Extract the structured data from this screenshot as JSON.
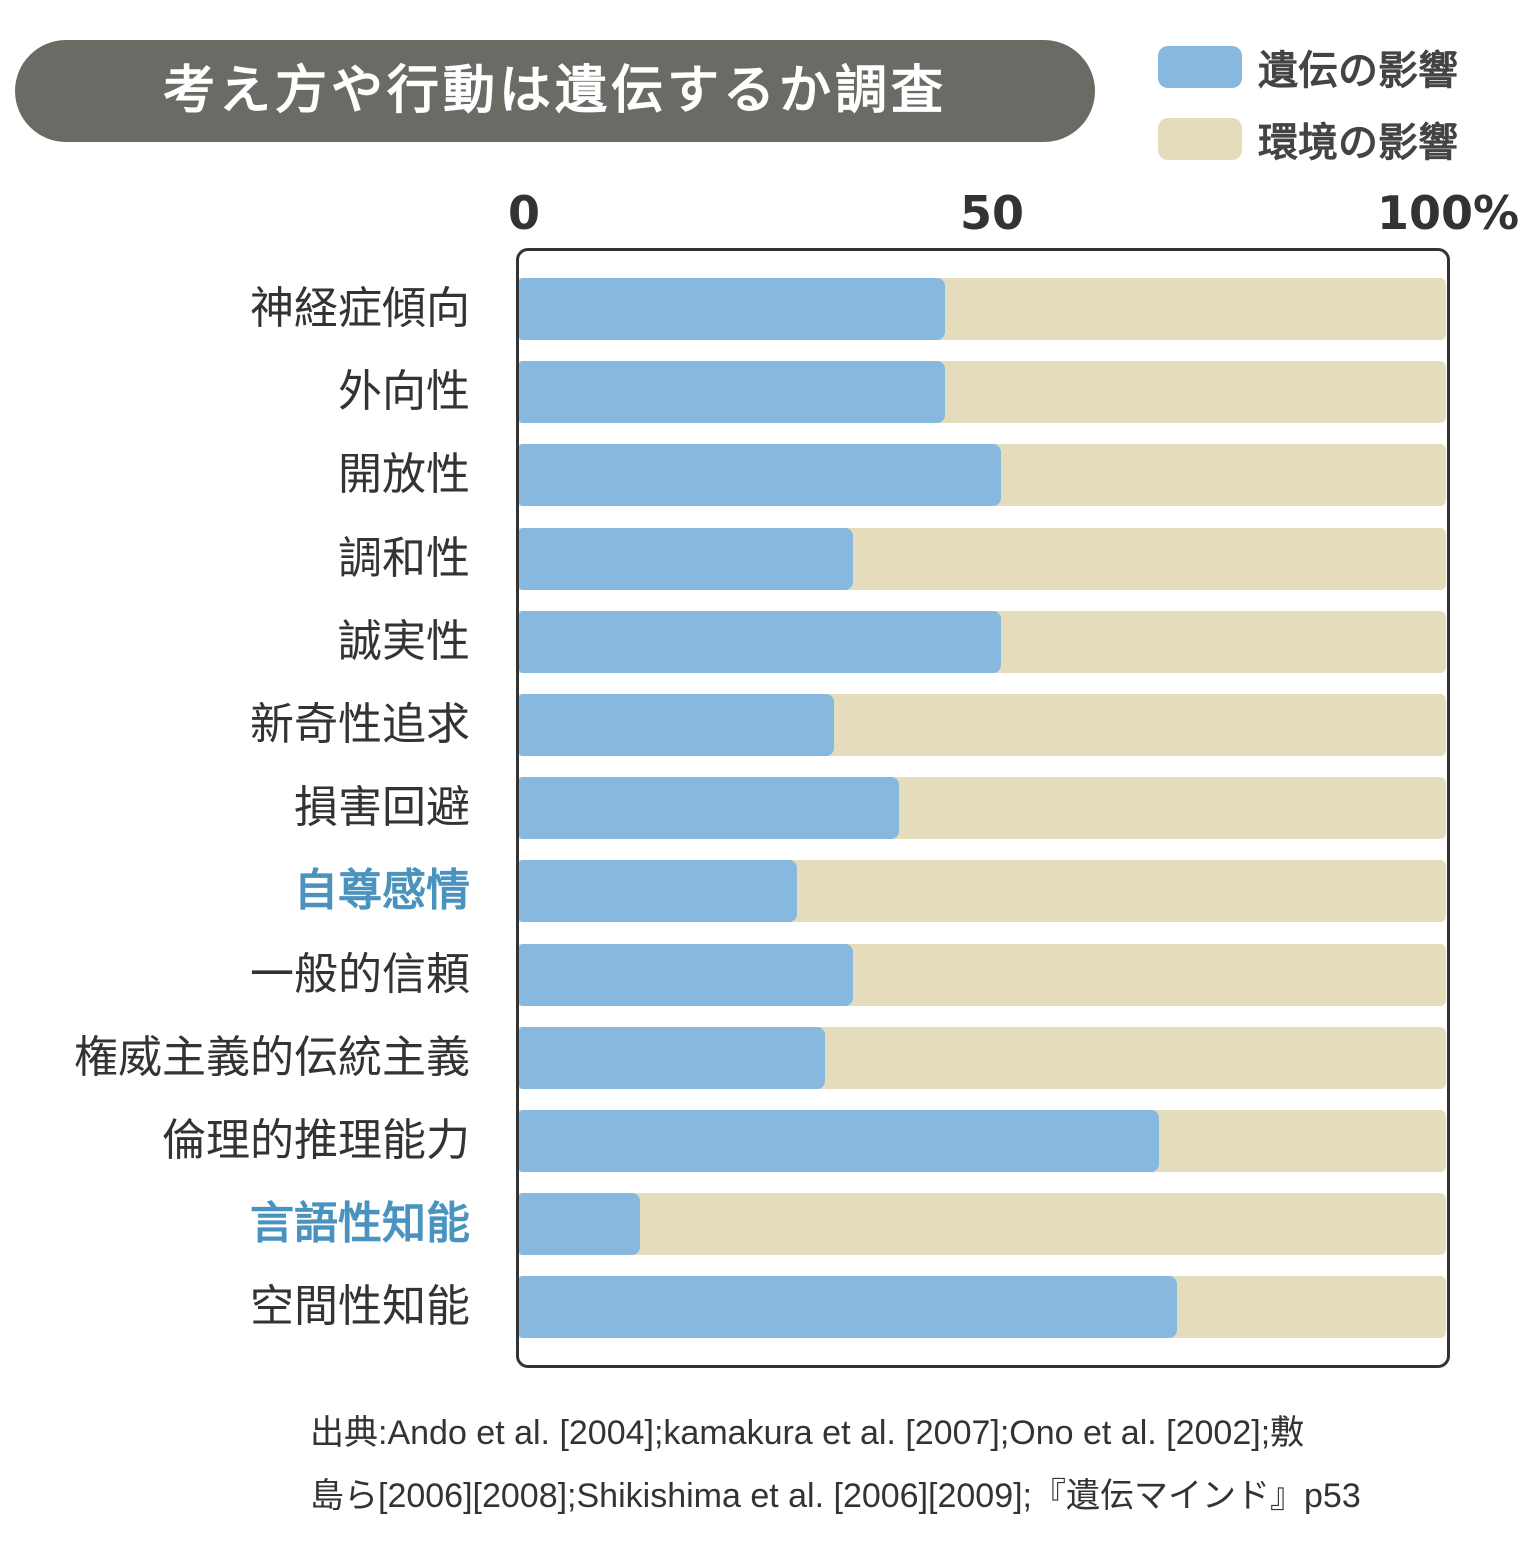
{
  "chart_data": {
    "type": "bar",
    "stacked": true,
    "orientation": "horizontal",
    "title": "考え方や行動は遺伝するか調査",
    "categories": [
      "神経症傾向",
      "外向性",
      "開放性",
      "調和性",
      "誠実性",
      "新奇性追求",
      "損害回避",
      "自尊感情",
      "一般的信頼",
      "権威主義的伝統主義",
      "倫理的推理能力",
      "言語性知能",
      "空間性知能"
    ],
    "highlighted": [
      "自尊感情",
      "言語性知能"
    ],
    "series": [
      {
        "name": "遺伝の影響",
        "color": "#86b8e0",
        "values": [
          46,
          46,
          52,
          36,
          52,
          34,
          41,
          30,
          36,
          33,
          69,
          13,
          71
        ]
      },
      {
        "name": "環境の影響",
        "color": "#e5dcbb",
        "values": [
          54,
          54,
          48,
          64,
          48,
          66,
          59,
          70,
          64,
          67,
          31,
          87,
          29
        ]
      }
    ],
    "xlim": [
      0,
      100
    ],
    "tick_labels": [
      "0",
      "50",
      "100%"
    ],
    "legend": "top-right",
    "highlight_color": "#4a93bf"
  },
  "source": {
    "line1": "出典:Ando et al. [2004];kamakura et al. [2007];Ono et al. [2002];敷",
    "line2": "島ら[2006][2008];Shikishima et al. [2006][2009];『遺伝マインド』p53"
  }
}
